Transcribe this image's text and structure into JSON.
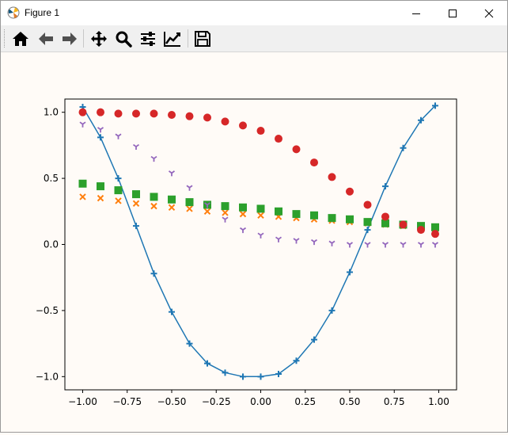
{
  "window": {
    "title": "Figure 1"
  },
  "toolbar": {
    "buttons": [
      {
        "name": "home-button",
        "icon": "home-icon"
      },
      {
        "name": "back-button",
        "icon": "arrow-left-icon"
      },
      {
        "name": "forward-button",
        "icon": "arrow-right-icon"
      },
      {
        "name": "pan-button",
        "icon": "move-icon"
      },
      {
        "name": "zoom-button",
        "icon": "magnifier-icon"
      },
      {
        "name": "subplots-button",
        "icon": "sliders-icon"
      },
      {
        "name": "customize-button",
        "icon": "chart-line-icon"
      },
      {
        "name": "save-button",
        "icon": "floppy-disk-icon"
      }
    ]
  },
  "chart_data": {
    "type": "line",
    "title": "",
    "xlabel": "",
    "ylabel": "",
    "xlim": [
      -1.1,
      1.1
    ],
    "ylim": [
      -1.1,
      1.1
    ],
    "x_ticks": [
      -1.0,
      -0.75,
      -0.5,
      -0.25,
      0.0,
      0.25,
      0.5,
      0.75,
      1.0
    ],
    "x_tick_labels": [
      "−1.00",
      "−0.75",
      "−0.50",
      "−0.25",
      "0.00",
      "0.25",
      "0.50",
      "0.75",
      "1.00"
    ],
    "y_ticks": [
      -1.0,
      -0.5,
      0.0,
      0.5,
      1.0
    ],
    "y_tick_labels": [
      "−1.0",
      "−0.5",
      "0.0",
      "0.5",
      "1.0"
    ],
    "grid": false,
    "legend": "none",
    "x": [
      -1.0,
      -0.9,
      -0.8,
      -0.7,
      -0.6,
      -0.5,
      -0.4,
      -0.3,
      -0.2,
      -0.1,
      0.0,
      0.1,
      0.2,
      0.3,
      0.4,
      0.5,
      0.6,
      0.7,
      0.8,
      0.9,
      0.98
    ],
    "series": [
      {
        "color": "#1f77b4",
        "marker": "plus",
        "line": true,
        "values": [
          1.04,
          0.81,
          0.5,
          0.14,
          -0.22,
          -0.51,
          -0.75,
          -0.9,
          -0.97,
          -1.0,
          -1.0,
          -0.98,
          -0.88,
          -0.72,
          -0.5,
          -0.21,
          0.11,
          0.44,
          0.73,
          0.94,
          1.05
        ]
      },
      {
        "color": "#ff7f0e",
        "marker": "x",
        "line": false,
        "values": [
          0.36,
          0.35,
          0.33,
          0.31,
          0.29,
          0.28,
          0.27,
          0.25,
          0.24,
          0.23,
          0.22,
          0.21,
          0.2,
          0.19,
          0.18,
          0.17,
          0.16,
          0.15,
          0.14,
          0.13,
          0.12
        ]
      },
      {
        "color": "#2ca02c",
        "marker": "square",
        "line": false,
        "values": [
          0.46,
          0.44,
          0.41,
          0.38,
          0.36,
          0.34,
          0.32,
          0.3,
          0.29,
          0.28,
          0.27,
          0.25,
          0.23,
          0.22,
          0.2,
          0.19,
          0.17,
          0.16,
          0.15,
          0.14,
          0.13
        ]
      },
      {
        "color": "#d62728",
        "marker": "circle",
        "line": false,
        "values": [
          1.0,
          1.0,
          0.99,
          0.99,
          0.99,
          0.98,
          0.97,
          0.96,
          0.93,
          0.9,
          0.86,
          0.8,
          0.72,
          0.62,
          0.51,
          0.4,
          0.3,
          0.21,
          0.15,
          0.11,
          0.08
        ]
      },
      {
        "color": "#9467bd",
        "marker": "tri_down",
        "line": false,
        "values": [
          0.91,
          0.87,
          0.82,
          0.74,
          0.65,
          0.54,
          0.43,
          0.3,
          0.19,
          0.11,
          0.07,
          0.04,
          0.03,
          0.02,
          0.01,
          0.0,
          0.0,
          0.0,
          0.0,
          0.0,
          0.0
        ]
      }
    ]
  }
}
